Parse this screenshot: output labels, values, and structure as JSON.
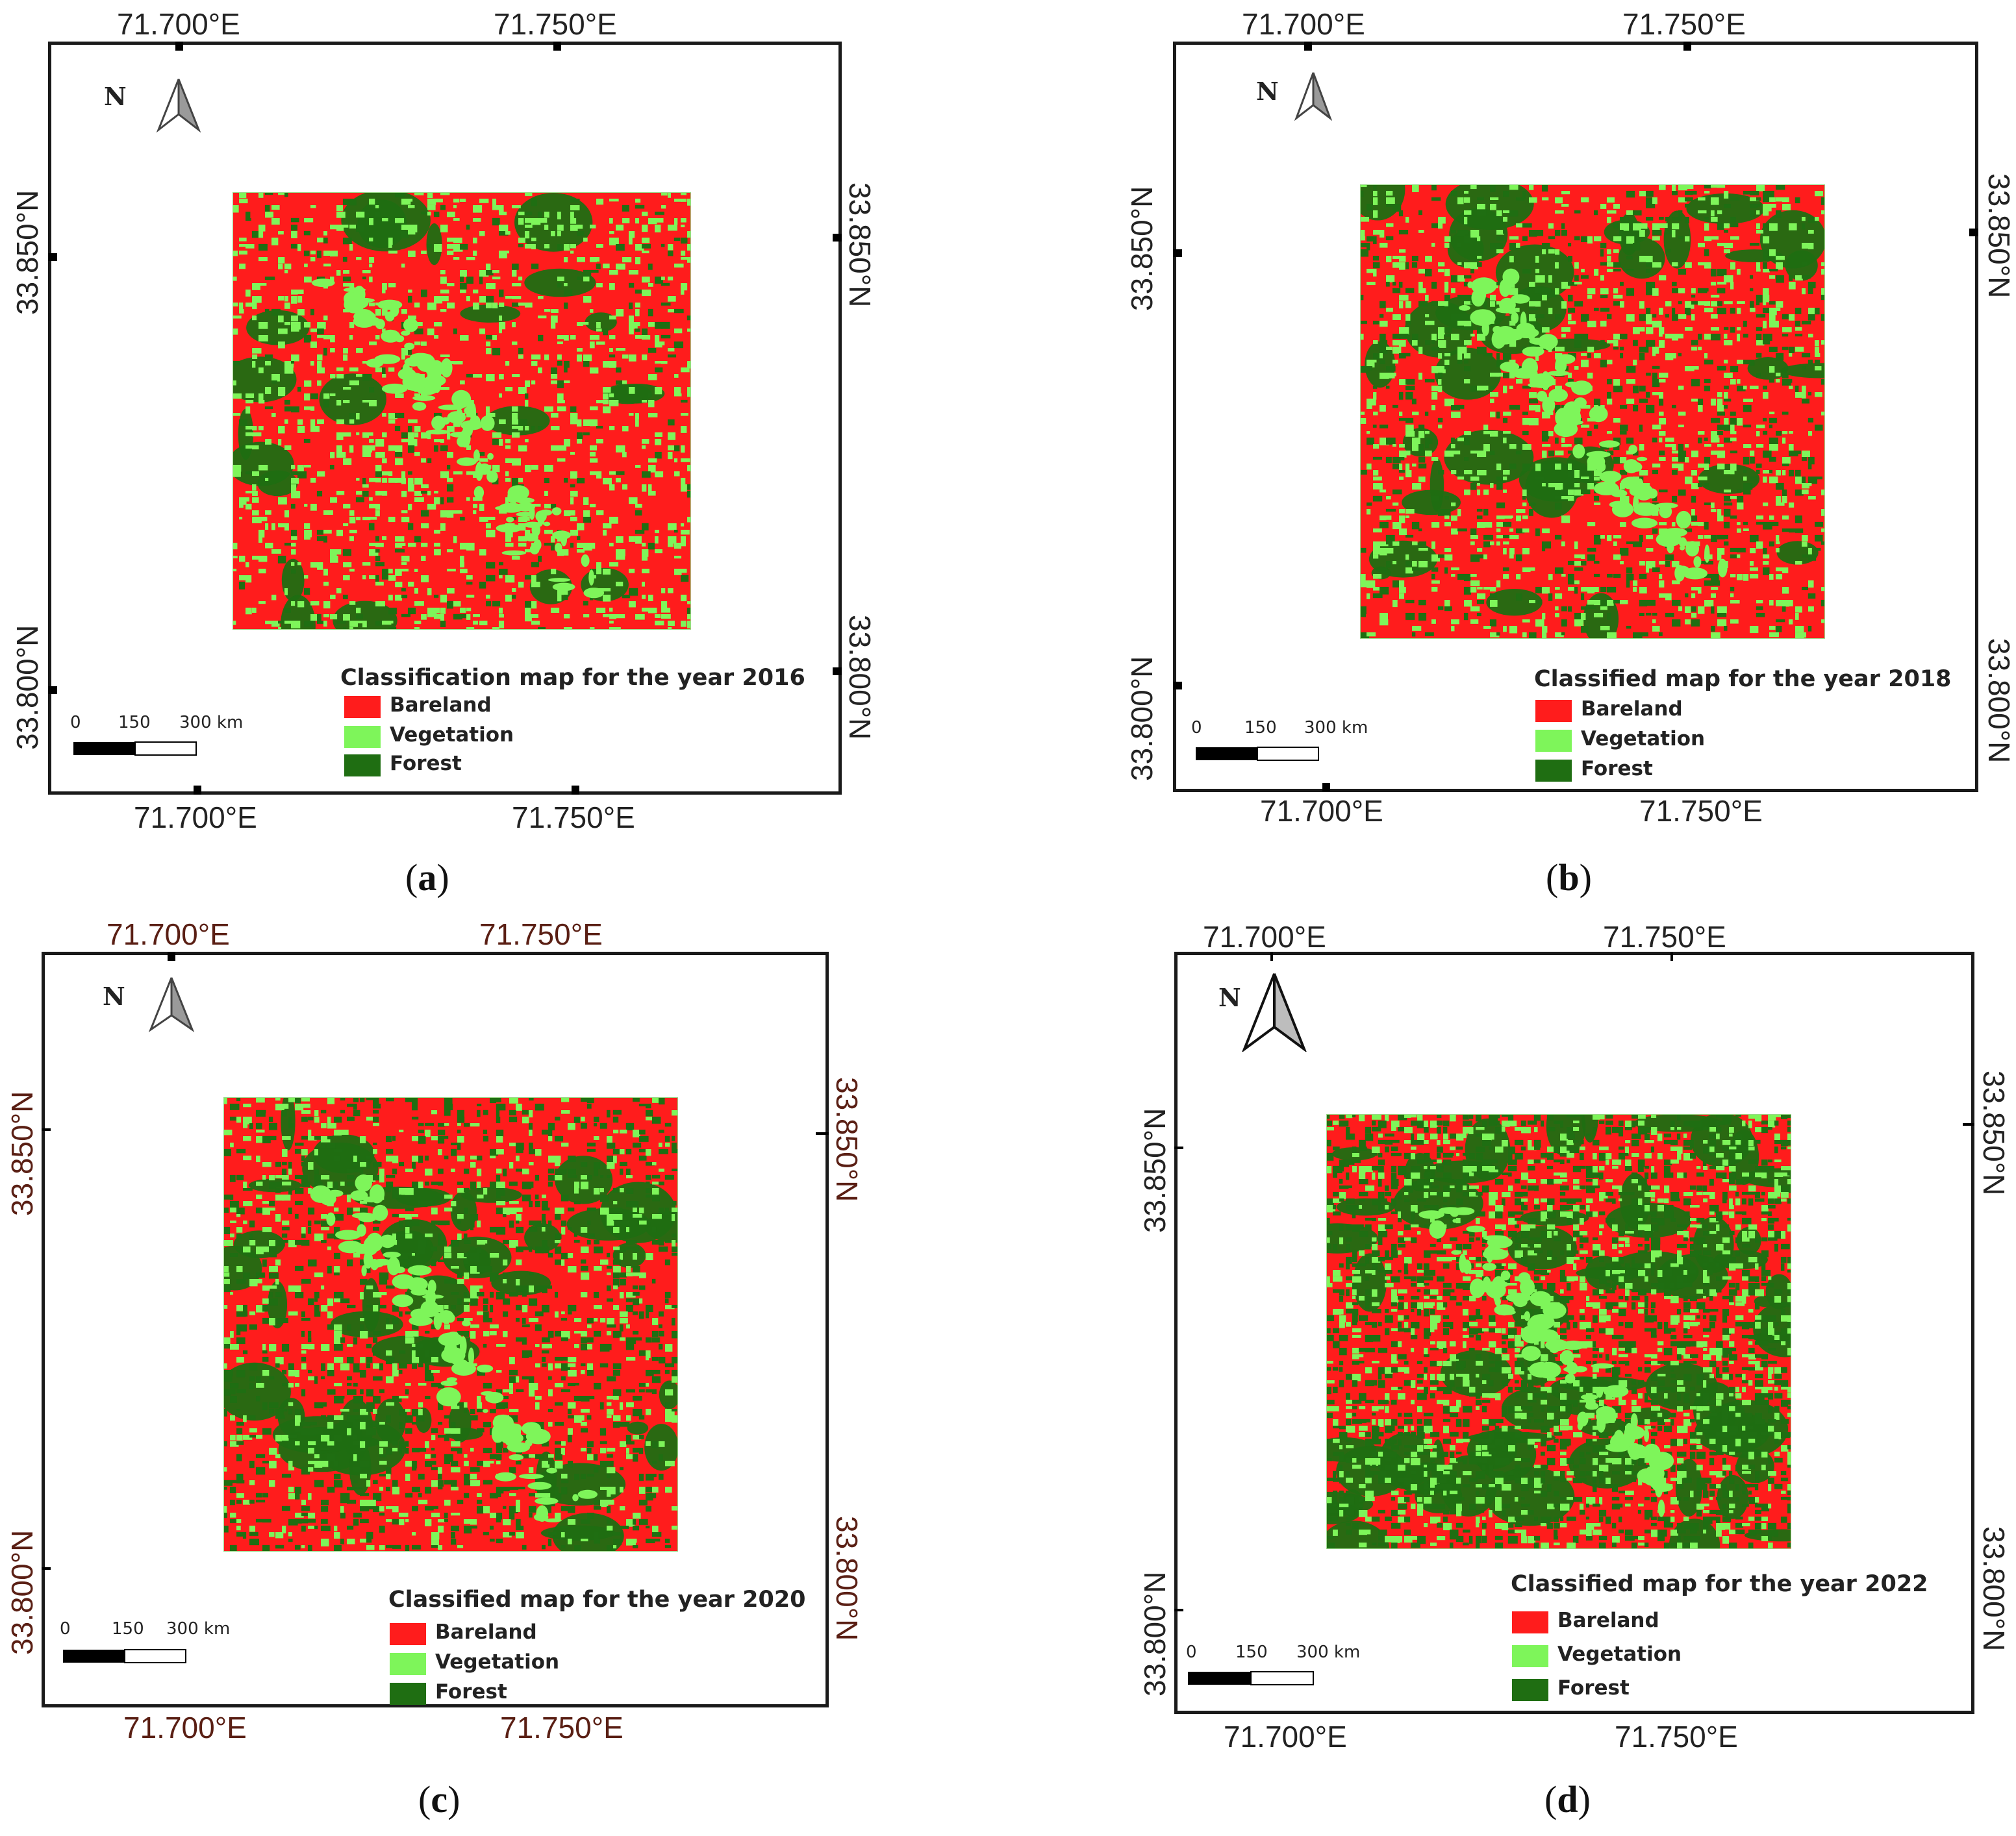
{
  "colors": {
    "bareland": "#ff1c1c",
    "vegetation": "#7ef55a",
    "forest": "#1f6e12"
  },
  "north_label": "N",
  "scale": {
    "zero": "0",
    "mid": "150",
    "end": "300 km"
  },
  "legend_items": [
    "Bareland",
    "Vegetation",
    "Forest"
  ],
  "coords": {
    "lon1": "71.700°E",
    "lon2": "71.750°E",
    "lat1": "33.850°N",
    "lat2": "33.800°N"
  },
  "panels": {
    "a": {
      "title": "Classification map for the year 2016",
      "letter": "a",
      "forest_share": 0.1,
      "veg_share": 0.22
    },
    "b": {
      "title": "Classified map for the year 2018",
      "letter": "b",
      "forest_share": 0.25,
      "veg_share": 0.2
    },
    "c": {
      "title": "Classified map for the year 2020",
      "letter": "c",
      "forest_share": 0.38,
      "veg_share": 0.14
    },
    "d": {
      "title": "Classified map for the year 2022",
      "letter": "d",
      "forest_share": 0.58,
      "veg_share": 0.2
    }
  }
}
